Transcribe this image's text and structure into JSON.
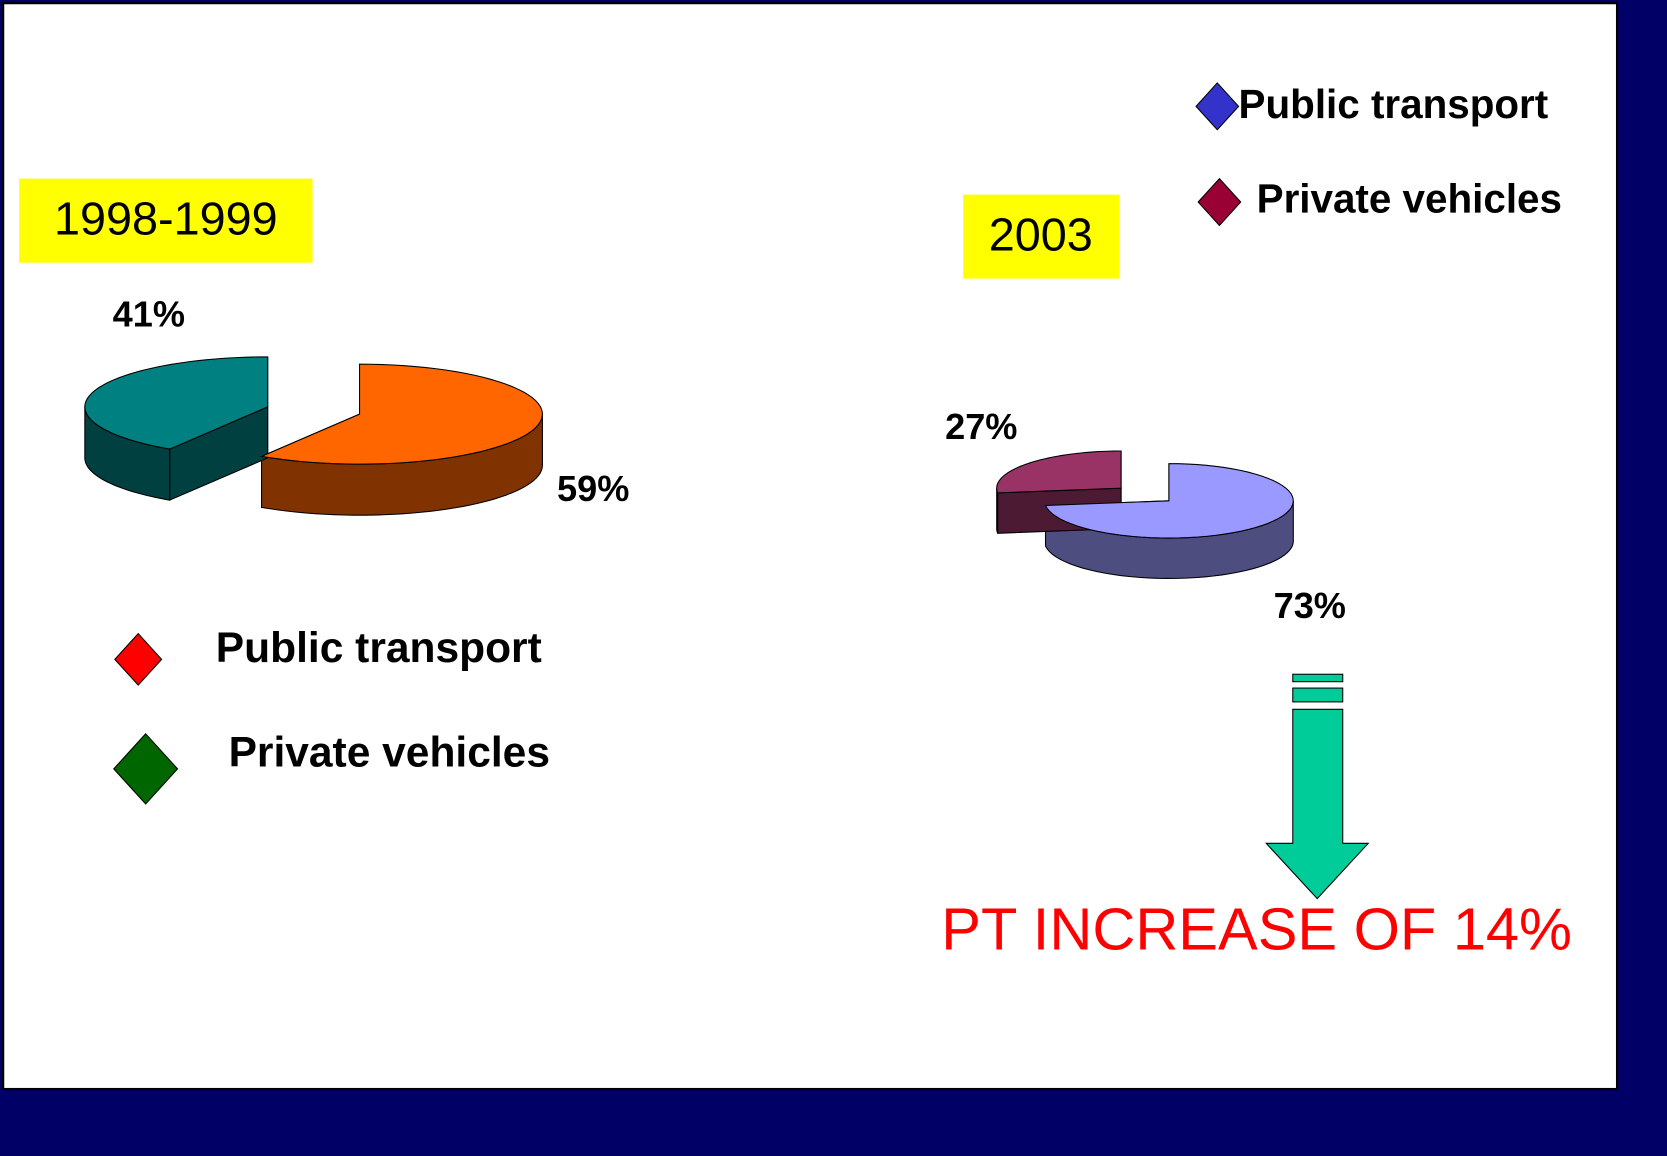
{
  "chart_data": [
    {
      "type": "pie",
      "title": "1998-1999",
      "categories": [
        "Public transport",
        "Private vehicles"
      ],
      "values": [
        59,
        41
      ],
      "value_labels": [
        "59%",
        "41%"
      ],
      "colors": [
        "#ff6600",
        "#008080"
      ],
      "legend_colors": [
        "#ff0000",
        "#006600"
      ]
    },
    {
      "type": "pie",
      "title": "2003",
      "categories": [
        "Public transport",
        "Private vehicles"
      ],
      "values": [
        73,
        27
      ],
      "value_labels": [
        "73%",
        "27%"
      ],
      "colors": [
        "#9999ff",
        "#993366"
      ],
      "legend_colors": [
        "#3333cc",
        "#990033"
      ]
    }
  ],
  "annotation": "PT INCREASE OF 14%"
}
